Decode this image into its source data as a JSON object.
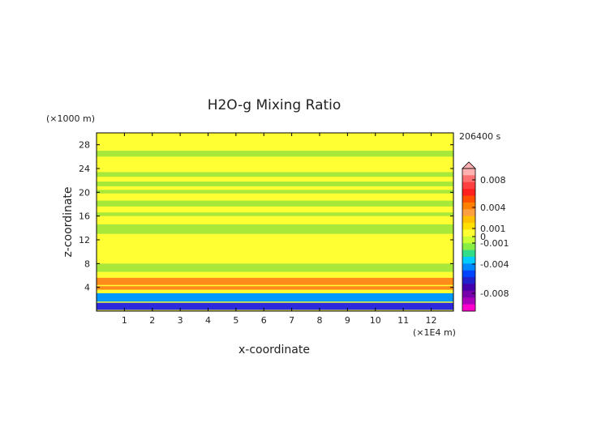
{
  "chart_data": {
    "type": "heatmap",
    "title": "H2O-g Mixing Ratio",
    "xlabel": "x-coordinate",
    "ylabel": "z-coordinate",
    "x_unit": "(×1E4 m)",
    "y_unit": "(×1000 m)",
    "time_label": "206400 s",
    "xlim": [
      0,
      12.8
    ],
    "ylim": [
      0,
      30
    ],
    "x_ticks": [
      "1",
      "2",
      "3",
      "4",
      "5",
      "6",
      "7",
      "8",
      "9",
      "10",
      "11",
      "12"
    ],
    "y_ticks": [
      "4",
      "8",
      "12",
      "16",
      "20",
      "24",
      "28"
    ],
    "colorbar": {
      "labels": [
        "0.008",
        "0.004",
        "0.001",
        "0",
        "-0.001",
        "-0.004",
        "-0.008"
      ],
      "colors": [
        "#ffb0b0",
        "#ff7070",
        "#ff4040",
        "#ff2020",
        "#ff5000",
        "#ff8000",
        "#ffa040",
        "#ffc000",
        "#ffe000",
        "#ffff33",
        "#ccff33",
        "#88ee44",
        "#33dd88",
        "#00ccff",
        "#0088ff",
        "#0044ff",
        "#2222cc",
        "#4400aa",
        "#7700aa",
        "#aa00bb",
        "#ff00cc"
      ]
    },
    "contour_fields": [
      {
        "value": "0",
        "color": "#ffff33",
        "bands": [
          [
            0,
            30
          ]
        ]
      },
      {
        "value": "-0.001",
        "color": "#a8e83a",
        "bands": [
          [
            26.0,
            27.0
          ],
          [
            22.6,
            23.4
          ],
          [
            21.0,
            21.8
          ],
          [
            19.8,
            20.4
          ],
          [
            17.6,
            18.6
          ],
          [
            16.0,
            16.6
          ],
          [
            13.0,
            14.6
          ],
          [
            6.6,
            8.0
          ]
        ]
      },
      {
        "value": "0.004",
        "color": "#ff8c1a",
        "bands": [
          [
            4.4,
            5.6
          ],
          [
            3.6,
            4.2
          ]
        ]
      },
      {
        "value": "-0.004",
        "color": "#0099ff",
        "bands": [
          [
            1.6,
            3.0
          ]
        ]
      },
      {
        "value": "-0.008",
        "color": "#2b2bdd",
        "bands": [
          [
            0.2,
            1.4
          ]
        ]
      }
    ]
  }
}
